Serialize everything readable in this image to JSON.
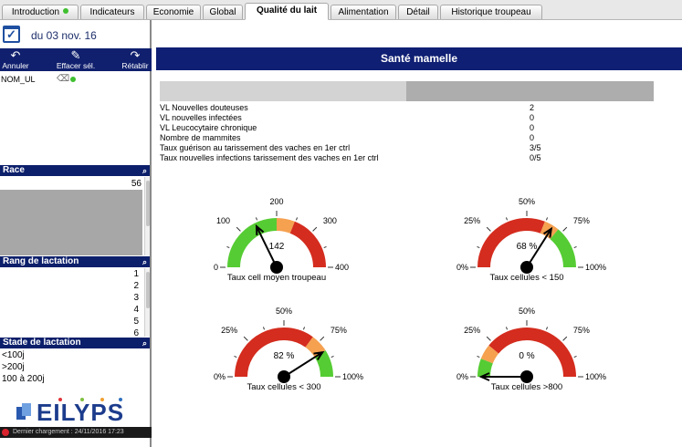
{
  "tabs": [
    {
      "label": "Introduction",
      "dot": true
    },
    {
      "label": "Indicateurs"
    },
    {
      "label": "Economie"
    },
    {
      "label": "Global"
    },
    {
      "label": "Qualité du lait",
      "active": true
    },
    {
      "label": "Alimentation"
    },
    {
      "label": "Détail"
    },
    {
      "label": "Historique troupeau"
    }
  ],
  "left": {
    "date": "du 03 nov. 16",
    "toolbar": {
      "undo": "Annuler",
      "clear": "Effacer sél.",
      "redo": "Rétablir"
    },
    "filter_name": "NOM_UL",
    "race": {
      "title": "Race",
      "value": "56"
    },
    "rang": {
      "title": "Rang de lactation",
      "items": [
        "1",
        "2",
        "3",
        "4",
        "5",
        "6"
      ]
    },
    "stade": {
      "title": "Stade de lactation",
      "items": [
        "<100j",
        ">200j",
        "100 à 200j"
      ]
    },
    "logo_text": "EILYPS",
    "status": "Dernier chargement : 24/11/2016 17:23"
  },
  "main": {
    "title": "Santé mamelle",
    "stats": [
      {
        "label": "VL Nouvelles douteuses",
        "value": "2"
      },
      {
        "label": "VL nouvelles infectées",
        "value": "0"
      },
      {
        "label": "VL Leucocytaire chronique",
        "value": "0"
      },
      {
        "label": "Nombre de mammites",
        "value": "0"
      },
      {
        "label": "Taux guérison au tarissement des vaches en 1er ctrl",
        "value": "3/5"
      },
      {
        "label": "Taux nouvelles infections tarissement des vaches en 1er ctrl",
        "value": "0/5"
      }
    ],
    "gauges": [
      {
        "title": "Taux cell moyen troupeau",
        "value": 142,
        "display": "142",
        "min": 0,
        "max": 400,
        "ticks": [
          "0",
          "100",
          "200",
          "300",
          "400"
        ],
        "bands": [
          {
            "from": 0,
            "to": 0.5,
            "color": "#55cc33"
          },
          {
            "from": 0.5,
            "to": 0.62,
            "color": "#f5a150"
          },
          {
            "from": 0.62,
            "to": 1,
            "color": "#d42c1e"
          }
        ]
      },
      {
        "title": "Taux cellules < 150",
        "value": 68,
        "display": "68 %",
        "min": 0,
        "max": 100,
        "ticks": [
          "0%",
          "25%",
          "50%",
          "75%",
          "100%"
        ],
        "bands": [
          {
            "from": 0,
            "to": 0.62,
            "color": "#d42c1e"
          },
          {
            "from": 0.62,
            "to": 0.72,
            "color": "#f5a150"
          },
          {
            "from": 0.72,
            "to": 1,
            "color": "#55cc33"
          }
        ]
      },
      {
        "title": "Taux cellules < 300",
        "value": 82,
        "display": "82 %",
        "min": 0,
        "max": 100,
        "ticks": [
          "0%",
          "25%",
          "50%",
          "75%",
          "100%"
        ],
        "bands": [
          {
            "from": 0,
            "to": 0.7,
            "color": "#d42c1e"
          },
          {
            "from": 0.7,
            "to": 0.82,
            "color": "#f5a150"
          },
          {
            "from": 0.82,
            "to": 1,
            "color": "#55cc33"
          }
        ]
      },
      {
        "title": "Taux cellules >800",
        "value": 0,
        "display": "0 %",
        "min": 0,
        "max": 100,
        "ticks": [
          "0%",
          "25%",
          "50%",
          "75%",
          "100%"
        ],
        "bands": [
          {
            "from": 0,
            "to": 0.12,
            "color": "#55cc33"
          },
          {
            "from": 0.12,
            "to": 0.22,
            "color": "#f5a150"
          },
          {
            "from": 0.22,
            "to": 1,
            "color": "#d42c1e"
          }
        ]
      }
    ]
  }
}
